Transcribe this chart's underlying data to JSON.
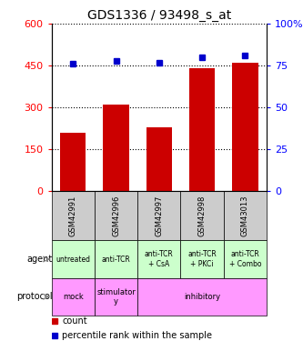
{
  "title": "GDS1336 / 93498_s_at",
  "samples": [
    "GSM42991",
    "GSM42996",
    "GSM42997",
    "GSM42998",
    "GSM43013"
  ],
  "counts": [
    210,
    310,
    230,
    440,
    460
  ],
  "percentiles": [
    76,
    78,
    77,
    80,
    81
  ],
  "bar_color": "#cc0000",
  "dot_color": "#0000cc",
  "left_ylim": [
    0,
    600
  ],
  "left_yticks": [
    0,
    150,
    300,
    450,
    600
  ],
  "right_ylim": [
    0,
    100
  ],
  "right_yticks": [
    0,
    25,
    50,
    75,
    100
  ],
  "agent_labels": [
    "untreated",
    "anti-TCR",
    "anti-TCR\n+ CsA",
    "anti-TCR\n+ PKCi",
    "anti-TCR\n+ Combo"
  ],
  "protocol_spans": [
    [
      0,
      0,
      "mock"
    ],
    [
      1,
      1,
      "stimulator\ny"
    ],
    [
      2,
      4,
      "inhibitory"
    ]
  ],
  "sample_bg_color": "#cccccc",
  "agent_color": "#ccffcc",
  "protocol_color": "#ff99ff",
  "legend_count_color": "#cc0000",
  "legend_pct_color": "#0000cc"
}
